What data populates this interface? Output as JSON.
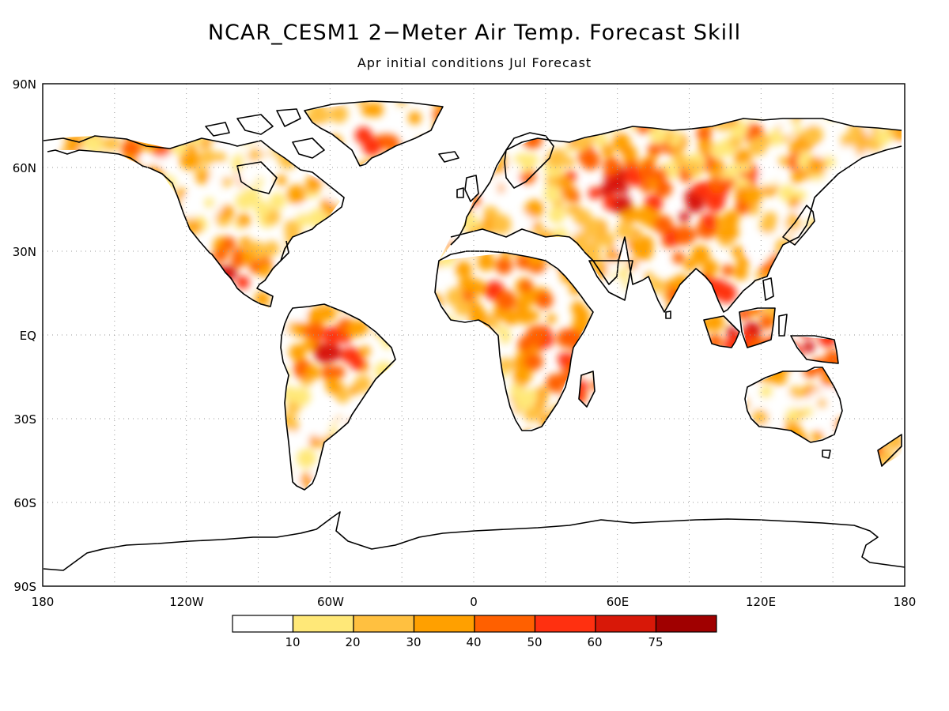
{
  "title": "NCAR_CESM1 2−Meter Air Temp. Forecast Skill",
  "subtitle": "Apr initial conditions   Jul Forecast",
  "lat_ticks": [
    "90N",
    "60N",
    "30N",
    "EQ",
    "30S",
    "60S",
    "90S"
  ],
  "lon_ticks": [
    "180",
    "120W",
    "60W",
    "0",
    "60E",
    "120E",
    "180"
  ],
  "legend": {
    "labels": [
      "10",
      "20",
      "30",
      "40",
      "50",
      "60",
      "75"
    ],
    "colors": [
      "#ffffff",
      "#ffe878",
      "#ffc040",
      "#ffa000",
      "#ff6000",
      "#ff3010",
      "#d81808",
      "#a00000"
    ]
  },
  "map_data": {
    "type": "filled-contour-map",
    "variable": "forecast skill",
    "projection": "equirectangular",
    "lon_range": [
      -180,
      180
    ],
    "lat_range": [
      -90,
      90
    ],
    "grid": "dotted",
    "hotspots": [
      {
        "region": "Greenland",
        "lon": -40,
        "lat": 72,
        "level": 50
      },
      {
        "region": "Central Asia / Russia",
        "lon": 60,
        "lat": 52,
        "level": 50
      },
      {
        "region": "Mongolia / Western China",
        "lon": 90,
        "lat": 42,
        "level": 60
      },
      {
        "region": "Tibet",
        "lon": 85,
        "lat": 32,
        "level": 50
      },
      {
        "region": "Amazon",
        "lon": -58,
        "lat": -5,
        "level": 60
      },
      {
        "region": "Sahara / Sahel",
        "lon": 10,
        "lat": 18,
        "level": 50
      },
      {
        "region": "Northeast Africa",
        "lon": 30,
        "lat": 20,
        "level": 50
      },
      {
        "region": "East Africa",
        "lon": 35,
        "lat": -5,
        "level": 60
      },
      {
        "region": "Borneo",
        "lon": 114,
        "lat": 0,
        "level": 60
      },
      {
        "region": "New Guinea",
        "lon": 140,
        "lat": -5,
        "level": 60
      },
      {
        "region": "Mexico",
        "lon": -103,
        "lat": 20,
        "level": 60
      },
      {
        "region": "Madagascar",
        "lon": 46,
        "lat": -20,
        "level": 50
      },
      {
        "region": "Indochina",
        "lon": 100,
        "lat": 17,
        "level": 50
      }
    ]
  }
}
